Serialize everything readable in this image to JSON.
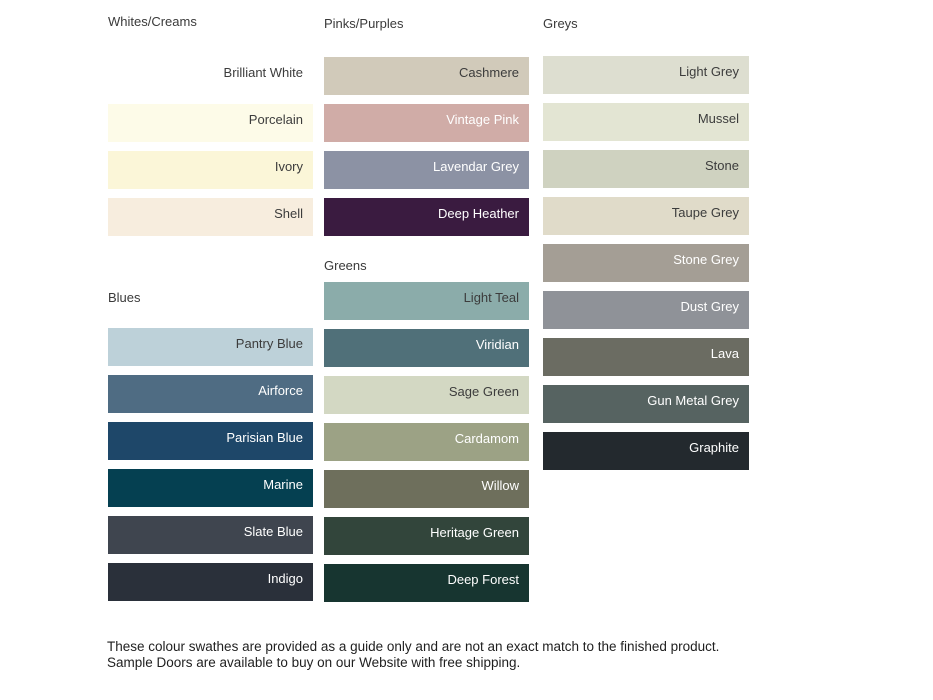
{
  "page": {
    "background": "#FFFFFF"
  },
  "text_colors": {
    "dark": "#3C3C3C",
    "light": "#FFFFFF"
  },
  "columns": [
    {
      "groups": [
        {
          "heading": "Whites/Creams",
          "swatches": [
            {
              "label": "Brilliant White",
              "color": "#FFFFFF",
              "text": "dark"
            },
            {
              "label": "Porcelain",
              "color": "#FDFBE8",
              "text": "dark"
            },
            {
              "label": "Ivory",
              "color": "#FBF6D8",
              "text": "dark"
            },
            {
              "label": "Shell",
              "color": "#F7EDDE",
              "text": "dark"
            }
          ]
        },
        {
          "heading": "Blues",
          "swatches": [
            {
              "label": "Pantry Blue",
              "color": "#BDD1D9",
              "text": "dark"
            },
            {
              "label": "Airforce",
              "color": "#4F6C83",
              "text": "light"
            },
            {
              "label": "Parisian Blue",
              "color": "#1E4769",
              "text": "light"
            },
            {
              "label": "Marine",
              "color": "#054051",
              "text": "light"
            },
            {
              "label": "Slate Blue",
              "color": "#3F454F",
              "text": "light"
            },
            {
              "label": "Indigo",
              "color": "#2A303A",
              "text": "light"
            }
          ]
        }
      ]
    },
    {
      "groups": [
        {
          "heading": "Pinks/Purples",
          "swatches": [
            {
              "label": "Cashmere",
              "color": "#D1CABA",
              "text": "dark"
            },
            {
              "label": "Vintage Pink",
              "color": "#D0ACA7",
              "text": "light"
            },
            {
              "label": "Lavendar Grey",
              "color": "#8C92A4",
              "text": "light"
            },
            {
              "label": "Deep Heather",
              "color": "#3A1B40",
              "text": "light"
            }
          ]
        },
        {
          "heading": "Greens",
          "swatches": [
            {
              "label": "Light Teal",
              "color": "#8BACAA",
              "text": "dark"
            },
            {
              "label": "Viridian",
              "color": "#507079",
              "text": "light"
            },
            {
              "label": "Sage Green",
              "color": "#D3D8C3",
              "text": "dark"
            },
            {
              "label": "Cardamom",
              "color": "#9CA285",
              "text": "light"
            },
            {
              "label": "Willow",
              "color": "#6E6F5C",
              "text": "light"
            },
            {
              "label": "Heritage Green",
              "color": "#32453B",
              "text": "light"
            },
            {
              "label": "Deep Forest",
              "color": "#173530",
              "text": "light"
            }
          ]
        }
      ]
    },
    {
      "groups": [
        {
          "heading": "Greys",
          "swatches": [
            {
              "label": "Light Grey",
              "color": "#DDDED0",
              "text": "dark"
            },
            {
              "label": "Mussel",
              "color": "#E3E5D3",
              "text": "dark"
            },
            {
              "label": "Stone",
              "color": "#CFD2C0",
              "text": "dark"
            },
            {
              "label": "Taupe Grey",
              "color": "#E0DBC9",
              "text": "dark"
            },
            {
              "label": "Stone Grey",
              "color": "#A49E95",
              "text": "light"
            },
            {
              "label": "Dust Grey",
              "color": "#8F9298",
              "text": "light"
            },
            {
              "label": "Lava",
              "color": "#6B6C62",
              "text": "light"
            },
            {
              "label": "Gun Metal Grey",
              "color": "#566361",
              "text": "light"
            },
            {
              "label": "Graphite",
              "color": "#23292E",
              "text": "light"
            }
          ]
        }
      ]
    }
  ],
  "footer": {
    "text": "These colour swathes are provided as a guide only and are not an exact match to the finished product.  Sample Doors are available to buy on our Website with free shipping."
  }
}
